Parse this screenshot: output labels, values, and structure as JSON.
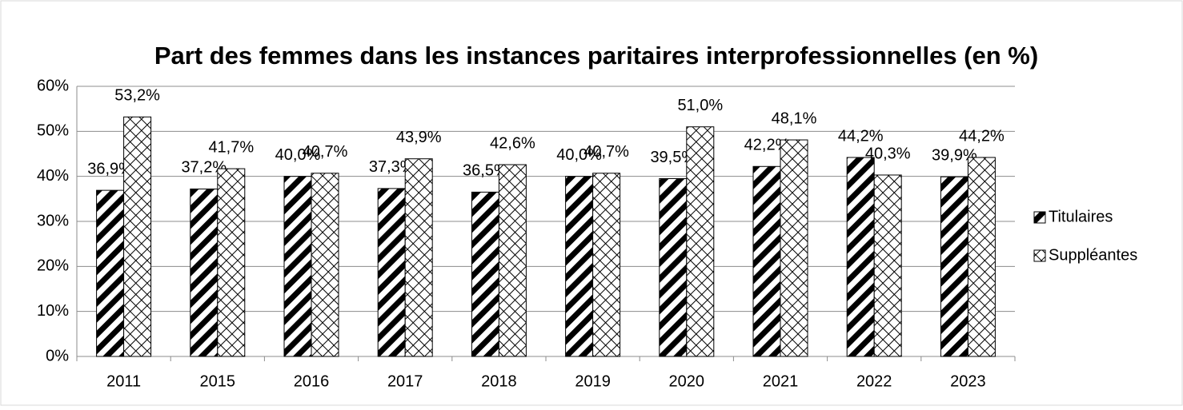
{
  "chart_data": {
    "type": "bar",
    "title": "Part des femmes dans les instances paritaires interprofessionnelles (en %)",
    "categories": [
      "2011",
      "2015",
      "2016",
      "2017",
      "2018",
      "2019",
      "2020",
      "2021",
      "2022",
      "2023"
    ],
    "series": [
      {
        "name": "Titulaires",
        "pattern": "stripes",
        "values": [
          36.9,
          37.2,
          40.0,
          37.3,
          36.5,
          40.0,
          39.5,
          42.2,
          44.2,
          39.9
        ],
        "value_labels": [
          "36,9%",
          "37,2%",
          "40,0%",
          "37,3%",
          "36,5%",
          "40,0%",
          "39,5%",
          "42,2%",
          "44,2%",
          "39,9%"
        ]
      },
      {
        "name": "Suppléantes",
        "pattern": "crosshatch",
        "values": [
          53.2,
          41.7,
          40.7,
          43.9,
          42.6,
          40.7,
          51.0,
          48.1,
          40.3,
          44.2
        ],
        "value_labels": [
          "53,2%",
          "41,7%",
          "40,7%",
          "43,9%",
          "42,6%",
          "40,7%",
          "51,0%",
          "48,1%",
          "40,3%",
          "44,2%"
        ]
      }
    ],
    "ylim": [
      0,
      60
    ],
    "yticks": [
      {
        "value": 0,
        "label": "0%"
      },
      {
        "value": 10,
        "label": "10%"
      },
      {
        "value": 20,
        "label": "20%"
      },
      {
        "value": 30,
        "label": "30%"
      },
      {
        "value": 40,
        "label": "40%"
      },
      {
        "value": 50,
        "label": "50%"
      },
      {
        "value": 60,
        "label": "60%"
      }
    ],
    "grid": true,
    "legend": "right"
  }
}
